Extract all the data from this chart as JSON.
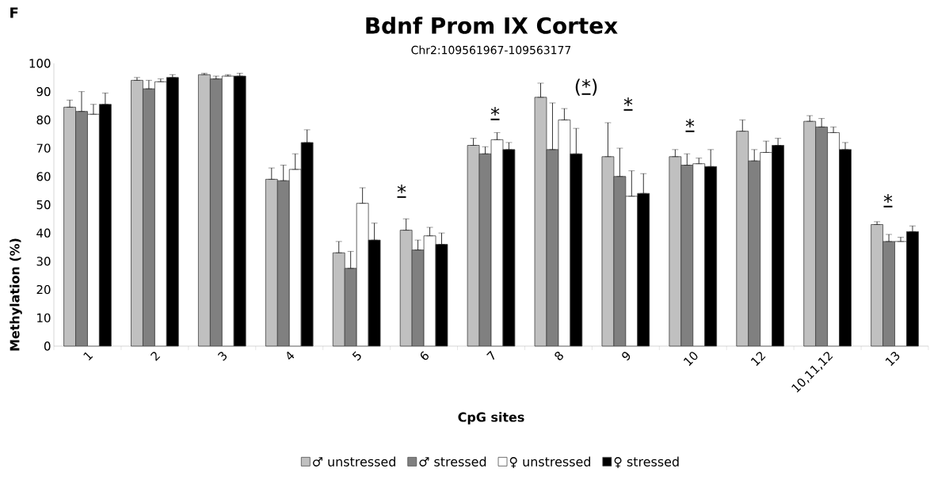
{
  "chart_data": {
    "type": "bar",
    "title": "Bdnf Prom IX Cortex",
    "subtitle": "Chr2:109561967-109563177",
    "xlabel": "CpG sites",
    "ylabel": "Methylation (%)",
    "categories": [
      "1",
      "2",
      "3",
      "4",
      "5",
      "6",
      "7",
      "8",
      "9",
      "10",
      "12",
      "10,11,12",
      "13"
    ],
    "series": [
      {
        "name": "♂ unstressed",
        "color": "#c0c0c0",
        "values": [
          84.5,
          94,
          96,
          59,
          33,
          41,
          71,
          88,
          67,
          67,
          76,
          79.5,
          43
        ],
        "errors": [
          [
            84.5,
            87
          ],
          [
            94,
            95
          ],
          [
            96,
            96.5
          ],
          [
            59,
            63
          ],
          [
            33,
            37
          ],
          [
            41,
            45
          ],
          [
            71,
            73.5
          ],
          [
            88,
            93
          ],
          [
            67,
            79
          ],
          [
            67,
            69.5
          ],
          [
            76,
            80
          ],
          [
            79.5,
            81.5
          ],
          [
            43,
            44
          ]
        ]
      },
      {
        "name": "♂ stressed",
        "color": "#808080",
        "values": [
          83,
          91,
          94.5,
          58.5,
          27.5,
          34,
          68,
          69.5,
          60,
          64,
          65.5,
          77.5,
          37
        ],
        "errors": [
          [
            83,
            90
          ],
          [
            91,
            94
          ],
          [
            94.5,
            95.5
          ],
          [
            58.5,
            64
          ],
          [
            27.5,
            33.5
          ],
          [
            34,
            37.5
          ],
          [
            68,
            70.5
          ],
          [
            69.5,
            86
          ],
          [
            60,
            70
          ],
          [
            64,
            68
          ],
          [
            65.5,
            69.5
          ],
          [
            77.5,
            80.5
          ],
          [
            37,
            39.5
          ]
        ]
      },
      {
        "name": "♀ unstressed",
        "color": "#ffffff",
        "values": [
          82,
          93.5,
          95.5,
          62.5,
          50.5,
          39,
          73,
          80,
          53,
          64.5,
          68.5,
          75.5,
          37
        ],
        "errors": [
          [
            82,
            85.5
          ],
          [
            93.5,
            94.5
          ],
          [
            95.5,
            96
          ],
          [
            62.5,
            68
          ],
          [
            50.5,
            56
          ],
          [
            39,
            42
          ],
          [
            73,
            75.5
          ],
          [
            80,
            84
          ],
          [
            53,
            62
          ],
          [
            64.5,
            66.5
          ],
          [
            68.5,
            72.5
          ],
          [
            75.5,
            77.5
          ],
          [
            37,
            38.5
          ]
        ]
      },
      {
        "name": "♀ stressed",
        "color": "#000000",
        "values": [
          85.5,
          95,
          95.5,
          72,
          37.5,
          36,
          69.5,
          68,
          54,
          63.5,
          71,
          69.5,
          40.5
        ],
        "errors": [
          [
            85.5,
            89.5
          ],
          [
            95,
            96
          ],
          [
            95.5,
            96.5
          ],
          [
            72,
            76.5
          ],
          [
            37.5,
            43.5
          ],
          [
            36,
            40
          ],
          [
            69.5,
            72
          ],
          [
            68,
            77
          ],
          [
            54,
            61
          ],
          [
            63.5,
            69.5
          ],
          [
            71,
            73.5
          ],
          [
            69.5,
            72
          ],
          [
            40.5,
            42.5
          ]
        ]
      }
    ],
    "ylim": [
      0,
      100
    ],
    "yticks": [
      0,
      10,
      20,
      30,
      40,
      50,
      60,
      70,
      80,
      90,
      100
    ],
    "grid": false,
    "legend": "bottom",
    "annotations": [
      "F",
      "*",
      "*",
      "(*)",
      "*",
      "*",
      "*"
    ]
  }
}
